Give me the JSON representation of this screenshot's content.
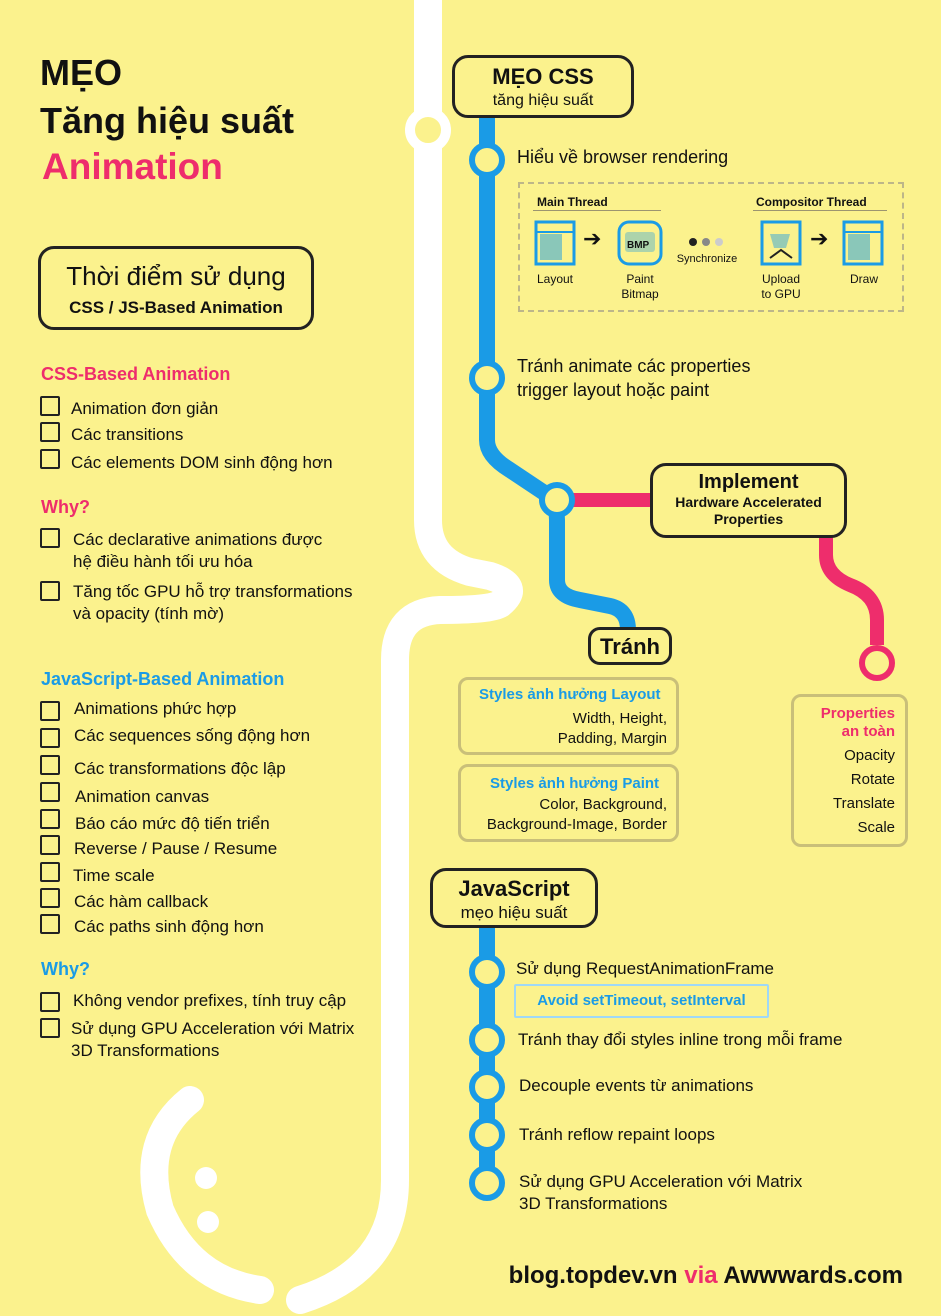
{
  "title": {
    "line1": "MẸO",
    "line2": "Tăng hiệu suất",
    "line3": "Animation"
  },
  "when_box": {
    "line1": "Thời điểm sử dụng",
    "line2": "CSS / JS-Based Animation"
  },
  "css_based": {
    "heading": "CSS-Based Animation",
    "items": [
      "Animation đơn giản",
      "Các transitions",
      "Các elements DOM sinh động hơn"
    ]
  },
  "css_why": {
    "heading": "Why?",
    "items": [
      {
        "line1": "Các declarative animations được",
        "line2": "hệ điều hành tối ưu hóa"
      },
      {
        "line1": "Tăng tốc GPU hỗ trợ transformations",
        "line2": "và opacity (tính mờ)"
      }
    ]
  },
  "js_based": {
    "heading": "JavaScript-Based Animation",
    "items": [
      "Animations phức hợp",
      "Các sequences sống động hơn",
      "Các transformations độc lập",
      "Animation canvas",
      "Báo cáo mức độ tiến triển",
      "Reverse / Pause / Resume",
      "Time scale",
      "Các hàm callback",
      "Các paths sinh động hơn"
    ]
  },
  "js_why": {
    "heading": "Why?",
    "items": [
      {
        "line1": "Không vendor prefixes, tính truy cập",
        "line2": ""
      },
      {
        "line1": "Sử dụng GPU Acceleration với Matrix",
        "line2": "3D Transformations"
      }
    ]
  },
  "css_tips": {
    "title": "MẸO CSS",
    "subtitle": "tăng hiệu suất",
    "stop1": "Hiểu về browser rendering",
    "stop2_line1": "Tránh animate các properties",
    "stop2_line2": "trigger layout hoặc paint"
  },
  "diagram": {
    "main_thread": "Main Thread",
    "compositor_thread": "Compositor Thread",
    "layout": "Layout",
    "paint_line1": "Paint",
    "paint_line2": "Bitmap",
    "bmp": "BMP",
    "synchronize": "Synchronize",
    "upload_line1": "Upload",
    "upload_line2": "to GPU",
    "draw": "Draw",
    "arrow": "➔"
  },
  "implement": {
    "title": "Implement",
    "line1": "Hardware Accelerated",
    "line2": "Properties"
  },
  "avoid": {
    "title": "Tránh",
    "layout_heading": "Styles ảnh hưởng Layout",
    "layout_line1": "Width, Height,",
    "layout_line2": "Padding, Margin",
    "paint_heading": "Styles ảnh hưởng Paint",
    "paint_line1": "Color, Background,",
    "paint_line2": "Background-Image, Border"
  },
  "safe_props": {
    "heading_line1": "Properties",
    "heading_line2": "an toàn",
    "items": [
      "Opacity",
      "Rotate",
      "Translate",
      "Scale"
    ]
  },
  "js_tips": {
    "title": "JavaScript",
    "subtitle": "mẹo hiệu suất",
    "stop1": "Sử dụng RequestAnimationFrame",
    "note": "Avoid setTimeout, setInterval",
    "stop2": "Tránh thay đổi styles inline trong mỗi frame",
    "stop3": "Decouple events từ animations",
    "stop4": "Tránh reflow repaint loops",
    "stop5_line1": "Sử dụng GPU Acceleration với Matrix",
    "stop5_line2": "3D Transformations"
  },
  "footer": {
    "site": "blog.topdev.vn",
    "via": "via",
    "source": "Awwwards.com"
  },
  "colors": {
    "background": "#fbf28d",
    "blue_line": "#1a9be6",
    "pink_line": "#ee2d6c",
    "white_line": "#ffffff"
  }
}
